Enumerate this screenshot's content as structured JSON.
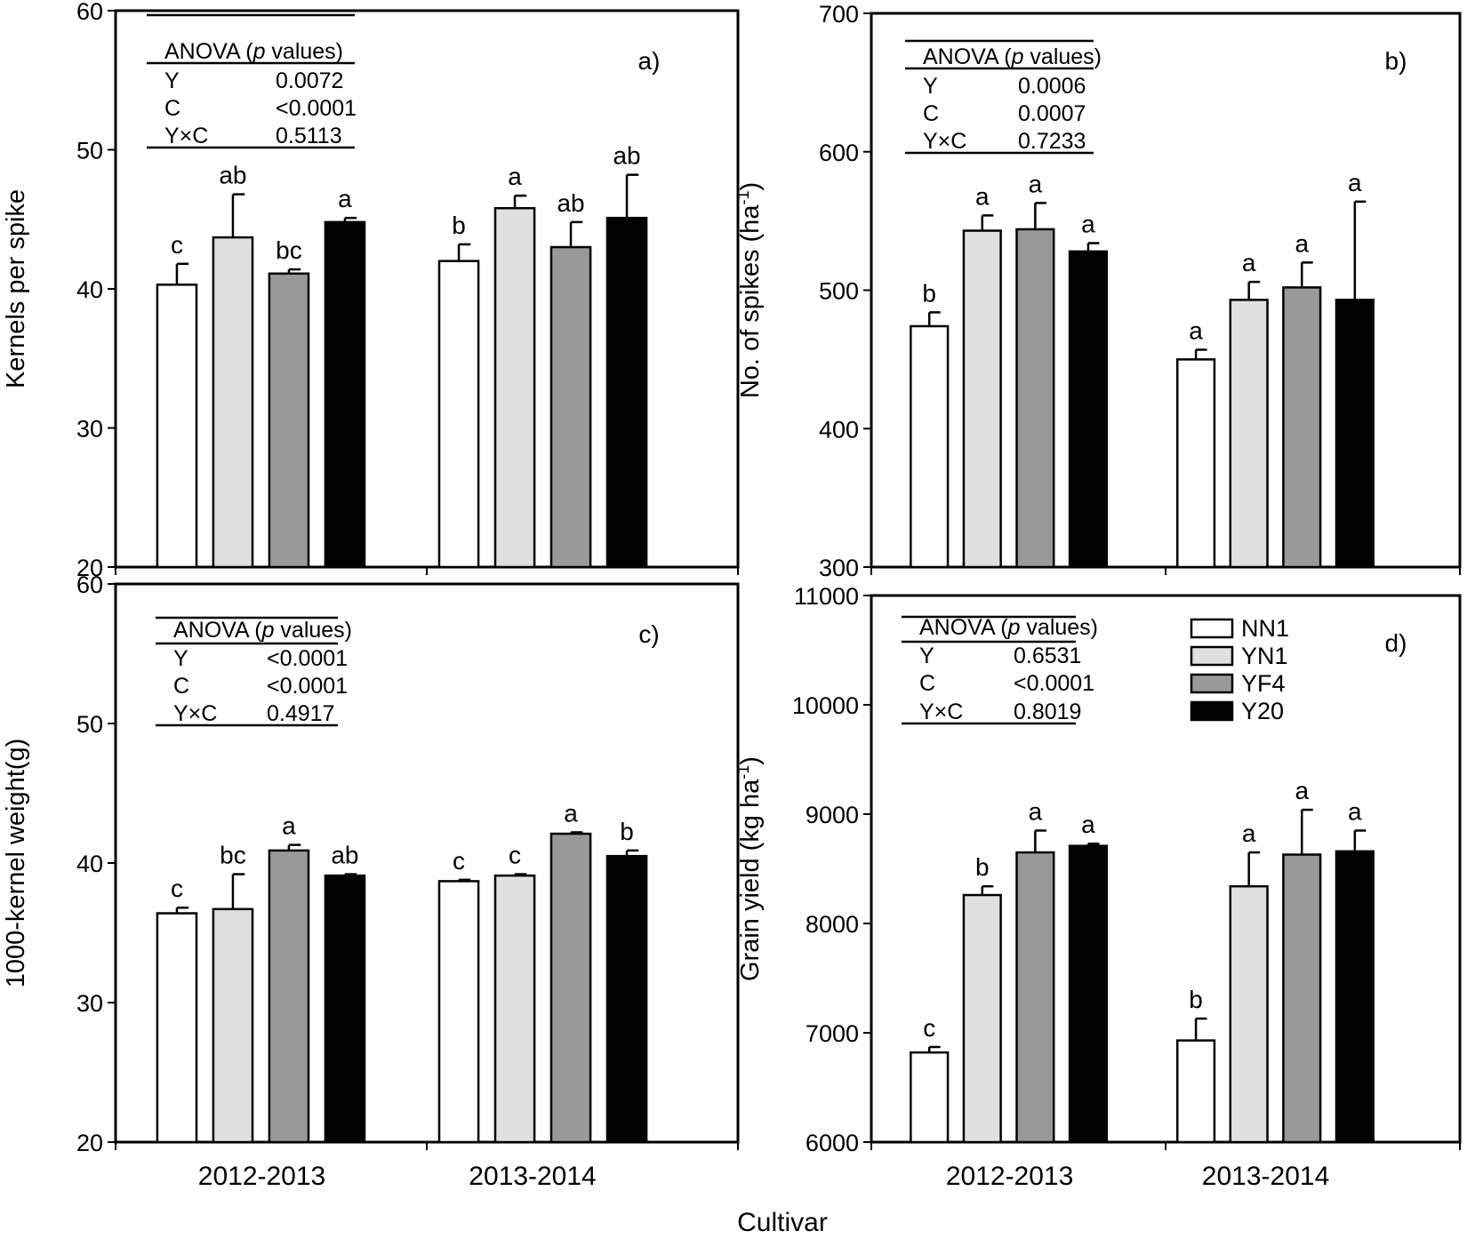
{
  "colors": {
    "NN1": "#ffffff",
    "YN1": "#e0e0e0",
    "YF4": "#999999",
    "Y20": "#000000",
    "stroke": "#000000"
  },
  "xlabel": "Cultivar",
  "legend": [
    {
      "name": "NN1",
      "color": "#ffffff"
    },
    {
      "name": "YN1",
      "color": "#e0e0e0"
    },
    {
      "name": "YF4",
      "color": "#999999"
    },
    {
      "name": "Y20",
      "color": "#000000"
    }
  ],
  "chart_data": [
    {
      "type": "bar",
      "panel": "a)",
      "ylabel": "Kernels per spike",
      "ylabel_sup": "",
      "ylabel_tail": "",
      "ylim": [
        20,
        60
      ],
      "yticks": [
        "20",
        "30",
        "40",
        "50",
        "60"
      ],
      "categories": [
        "2012-2013",
        "2013-2014"
      ],
      "series": [
        {
          "name": "NN1",
          "values": [
            40.3,
            42.0
          ],
          "errors": [
            1.5,
            1.2
          ],
          "letters": [
            "c",
            "b"
          ]
        },
        {
          "name": "YN1",
          "values": [
            43.7,
            45.8
          ],
          "errors": [
            3.1,
            0.9
          ],
          "letters": [
            "ab",
            "a"
          ]
        },
        {
          "name": "YF4",
          "values": [
            41.1,
            43.0
          ],
          "errors": [
            0.3,
            1.8
          ],
          "letters": [
            "bc",
            "ab"
          ]
        },
        {
          "name": "Y20",
          "values": [
            44.8,
            45.1
          ],
          "errors": [
            0.3,
            3.1
          ],
          "letters": [
            "a",
            "ab"
          ]
        }
      ],
      "anova": {
        "title": "ANOVA (",
        "title_italic": "p",
        "title_end": " values)",
        "rows": [
          [
            "Y",
            "0.0072"
          ],
          [
            "C",
            "<0.0001"
          ],
          [
            "Y×C",
            "0.5113"
          ]
        ]
      }
    },
    {
      "type": "bar",
      "panel": "b)",
      "ylabel": "No. of spikes (ha",
      "ylabel_sup": "-1",
      "ylabel_tail": ")",
      "ylim": [
        300,
        700
      ],
      "yticks": [
        "300",
        "400",
        "500",
        "600",
        "700"
      ],
      "categories": [
        "2012-2013",
        "2013-2014"
      ],
      "series": [
        {
          "name": "NN1",
          "values": [
            474,
            450
          ],
          "errors": [
            10,
            7
          ],
          "letters": [
            "b",
            "a"
          ]
        },
        {
          "name": "YN1",
          "values": [
            543,
            493
          ],
          "errors": [
            11,
            13
          ],
          "letters": [
            "a",
            "a"
          ]
        },
        {
          "name": "YF4",
          "values": [
            544,
            502
          ],
          "errors": [
            19,
            18
          ],
          "letters": [
            "a",
            "a"
          ]
        },
        {
          "name": "Y20",
          "values": [
            528,
            493
          ],
          "errors": [
            6,
            71
          ],
          "letters": [
            "a",
            "a"
          ]
        }
      ],
      "anova": {
        "title": "ANOVA (",
        "title_italic": "p",
        "title_end": " values)",
        "rows": [
          [
            "Y",
            "0.0006"
          ],
          [
            "C",
            "0.0007"
          ],
          [
            "Y×C",
            "0.7233"
          ]
        ]
      }
    },
    {
      "type": "bar",
      "panel": "c)",
      "ylabel": "1000-kernel weight(g)",
      "ylabel_sup": "",
      "ylabel_tail": "",
      "ylim": [
        20,
        60
      ],
      "yticks": [
        "20",
        "30",
        "40",
        "50",
        "60"
      ],
      "categories": [
        "2012-2013",
        "2013-2014"
      ],
      "series": [
        {
          "name": "NN1",
          "values": [
            36.4,
            38.7
          ],
          "errors": [
            0.4,
            0.1
          ],
          "letters": [
            "c",
            "c"
          ]
        },
        {
          "name": "YN1",
          "values": [
            36.7,
            39.1
          ],
          "errors": [
            2.5,
            0.1
          ],
          "letters": [
            "bc",
            "c"
          ]
        },
        {
          "name": "YF4",
          "values": [
            40.9,
            42.1
          ],
          "errors": [
            0.4,
            0.1
          ],
          "letters": [
            "a",
            "a"
          ]
        },
        {
          "name": "Y20",
          "values": [
            39.1,
            40.5
          ],
          "errors": [
            0.1,
            0.4
          ],
          "letters": [
            "ab",
            "b"
          ]
        }
      ],
      "anova": {
        "title": "ANOVA (",
        "title_italic": "p",
        "title_end": " values)",
        "rows": [
          [
            "Y",
            "<0.0001"
          ],
          [
            "C",
            "<0.0001"
          ],
          [
            "Y×C",
            "0.4917"
          ]
        ]
      }
    },
    {
      "type": "bar",
      "panel": "d)",
      "ylabel": "Grain yield (kg ha",
      "ylabel_sup": "-1",
      "ylabel_tail": ")",
      "ylim": [
        6000,
        11000
      ],
      "yticks": [
        "6000",
        "7000",
        "8000",
        "9000",
        "10000",
        "11000"
      ],
      "categories": [
        "2012-2013",
        "2013-2014"
      ],
      "series": [
        {
          "name": "NN1",
          "values": [
            6820,
            6930
          ],
          "errors": [
            50,
            200
          ],
          "letters": [
            "c",
            "b"
          ]
        },
        {
          "name": "YN1",
          "values": [
            8260,
            8340
          ],
          "errors": [
            80,
            310
          ],
          "letters": [
            "b",
            "a"
          ]
        },
        {
          "name": "YF4",
          "values": [
            8650,
            8630
          ],
          "errors": [
            200,
            410
          ],
          "letters": [
            "a",
            "a"
          ]
        },
        {
          "name": "Y20",
          "values": [
            8710,
            8660
          ],
          "errors": [
            20,
            190
          ],
          "letters": [
            "a",
            "a"
          ]
        }
      ],
      "anova": {
        "title": "ANOVA (",
        "title_italic": "p",
        "title_end": " values)",
        "rows": [
          [
            "Y",
            "0.6531"
          ],
          [
            "C",
            "<0.0001"
          ],
          [
            "Y×C",
            "0.8019"
          ]
        ]
      }
    }
  ]
}
